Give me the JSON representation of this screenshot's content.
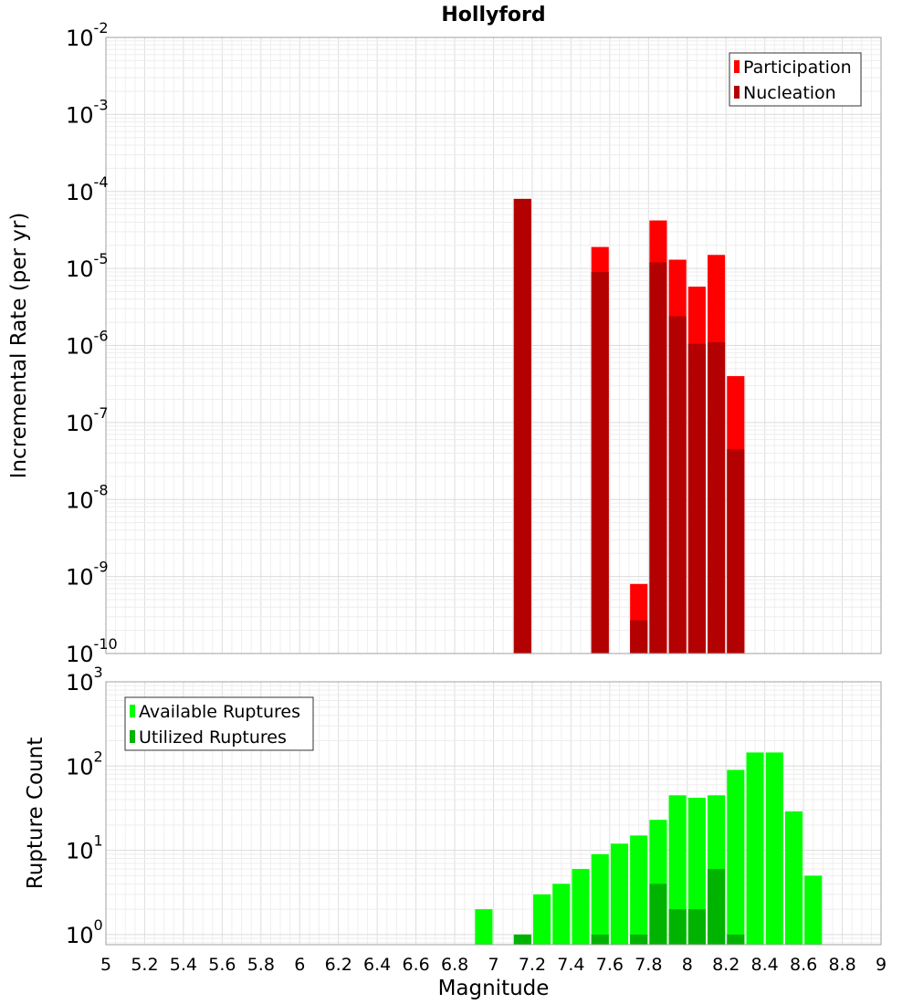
{
  "chart_data": [
    {
      "type": "bar",
      "title": "Hollyford",
      "ylabel": "Incremental Rate (per yr)",
      "xlabel": "",
      "y_scale": "log",
      "ylim_exponents": [
        -10,
        -2
      ],
      "y_tick_base": "10",
      "y_tick_exponents": [
        "-10",
        "-9",
        "-8",
        "-7",
        "-6",
        "-5",
        "-4",
        "-3",
        "-2"
      ],
      "xlim": [
        5,
        9
      ],
      "bar_width": 0.09,
      "grid": true,
      "legend": "top-right",
      "colors": {
        "Participation": "#ff0000",
        "Nucleation": "#b30000"
      },
      "series": [
        {
          "name": "Participation",
          "x": [
            7.15,
            7.55,
            7.75,
            7.85,
            7.95,
            8.05,
            8.15,
            8.25
          ],
          "values": [
            8e-05,
            1.9e-05,
            8e-10,
            4.2e-05,
            1.3e-05,
            5.8e-06,
            1.5e-05,
            4e-07
          ]
        },
        {
          "name": "Nucleation",
          "x": [
            7.15,
            7.55,
            7.75,
            7.85,
            7.95,
            8.05,
            8.15,
            8.25
          ],
          "values": [
            8e-05,
            9e-06,
            2.7e-10,
            1.2e-05,
            2.4e-06,
            1.05e-06,
            1.1e-06,
            4.5e-08
          ]
        }
      ]
    },
    {
      "type": "bar",
      "title": "",
      "ylabel": "Rupture Count",
      "xlabel": "Magnitude",
      "y_scale": "log",
      "ylim_exponents": [
        -0.12,
        3
      ],
      "y_tick_base": "10",
      "y_tick_exponents": [
        "0",
        "1",
        "2",
        "3"
      ],
      "xlim": [
        5,
        9
      ],
      "bar_width": 0.09,
      "x_tick_labels": [
        "5",
        "5.2",
        "5.4",
        "5.6",
        "5.8",
        "6",
        "6.2",
        "6.4",
        "6.6",
        "6.8",
        "7",
        "7.2",
        "7.4",
        "7.6",
        "7.8",
        "8",
        "8.2",
        "8.4",
        "8.6",
        "8.8",
        "9"
      ],
      "grid": true,
      "legend": "top-left",
      "colors": {
        "Available Ruptures": "#00ff00",
        "Utilized Ruptures": "#00b300"
      },
      "series": [
        {
          "name": "Available Ruptures",
          "x": [
            6.95,
            7.15,
            7.25,
            7.35,
            7.45,
            7.55,
            7.65,
            7.75,
            7.85,
            7.95,
            8.05,
            8.15,
            8.25,
            8.35,
            8.45,
            8.55,
            8.65
          ],
          "values": [
            2,
            1,
            3,
            4,
            6,
            9,
            12,
            15,
            23,
            45,
            42,
            45,
            90,
            145,
            145,
            29,
            5
          ]
        },
        {
          "name": "Utilized Ruptures",
          "x": [
            7.15,
            7.55,
            7.75,
            7.85,
            7.95,
            8.05,
            8.15,
            8.25
          ],
          "values": [
            1,
            1,
            1,
            4,
            2,
            2,
            6,
            1
          ]
        }
      ]
    }
  ]
}
